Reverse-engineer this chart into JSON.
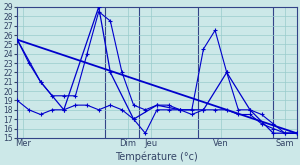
{
  "background_color": "#cce8e8",
  "grid_color": "#99cccc",
  "line_color": "#0000cc",
  "xlabel": "Température (°c)",
  "ylim": [
    15,
    29
  ],
  "xlim": [
    0,
    24
  ],
  "yticks": [
    15,
    16,
    17,
    18,
    19,
    20,
    21,
    22,
    23,
    24,
    25,
    26,
    27,
    28,
    29
  ],
  "day_labels": [
    "Mer",
    "Dim",
    "Jeu",
    "Ven",
    "Sam"
  ],
  "day_x": [
    0.5,
    9.5,
    11.5,
    17.5,
    23.0
  ],
  "day_sep": [
    7.5,
    10.5,
    15.5,
    22.0
  ],
  "line_max_x": [
    0,
    1,
    2,
    3,
    4,
    5,
    6,
    7,
    8,
    9,
    10,
    11,
    12,
    13,
    14,
    15,
    16,
    17,
    18,
    19,
    20,
    21,
    22,
    23,
    24
  ],
  "line_max_y": [
    25.5,
    23.0,
    21.0,
    19.5,
    19.5,
    19.5,
    24.0,
    28.5,
    27.5,
    22.0,
    18.5,
    18.0,
    18.5,
    18.5,
    18.0,
    18.0,
    24.5,
    26.5,
    22.0,
    18.0,
    18.0,
    17.5,
    16.5,
    15.5,
    15.5
  ],
  "line_min_x": [
    0,
    1,
    2,
    3,
    4,
    5,
    6,
    7,
    8,
    9,
    10,
    11,
    12,
    13,
    14,
    15,
    16,
    17,
    18,
    19,
    20,
    21,
    22,
    23,
    24
  ],
  "line_min_y": [
    19.0,
    18.0,
    17.5,
    18.0,
    18.0,
    18.5,
    18.5,
    18.0,
    18.5,
    18.0,
    17.0,
    15.5,
    18.0,
    18.0,
    18.0,
    17.5,
    18.0,
    18.0,
    18.0,
    17.5,
    17.5,
    16.5,
    16.0,
    15.5,
    15.5
  ],
  "line_avg_x": [
    0,
    2,
    4,
    7,
    8,
    10,
    12,
    14,
    16,
    18,
    20,
    22,
    24
  ],
  "line_avg_y": [
    25.5,
    21.0,
    18.0,
    29.0,
    22.0,
    17.0,
    18.5,
    18.0,
    18.0,
    22.0,
    18.0,
    15.5,
    15.5
  ],
  "line_trend_x": [
    0,
    24
  ],
  "line_trend_y": [
    25.5,
    15.5
  ]
}
